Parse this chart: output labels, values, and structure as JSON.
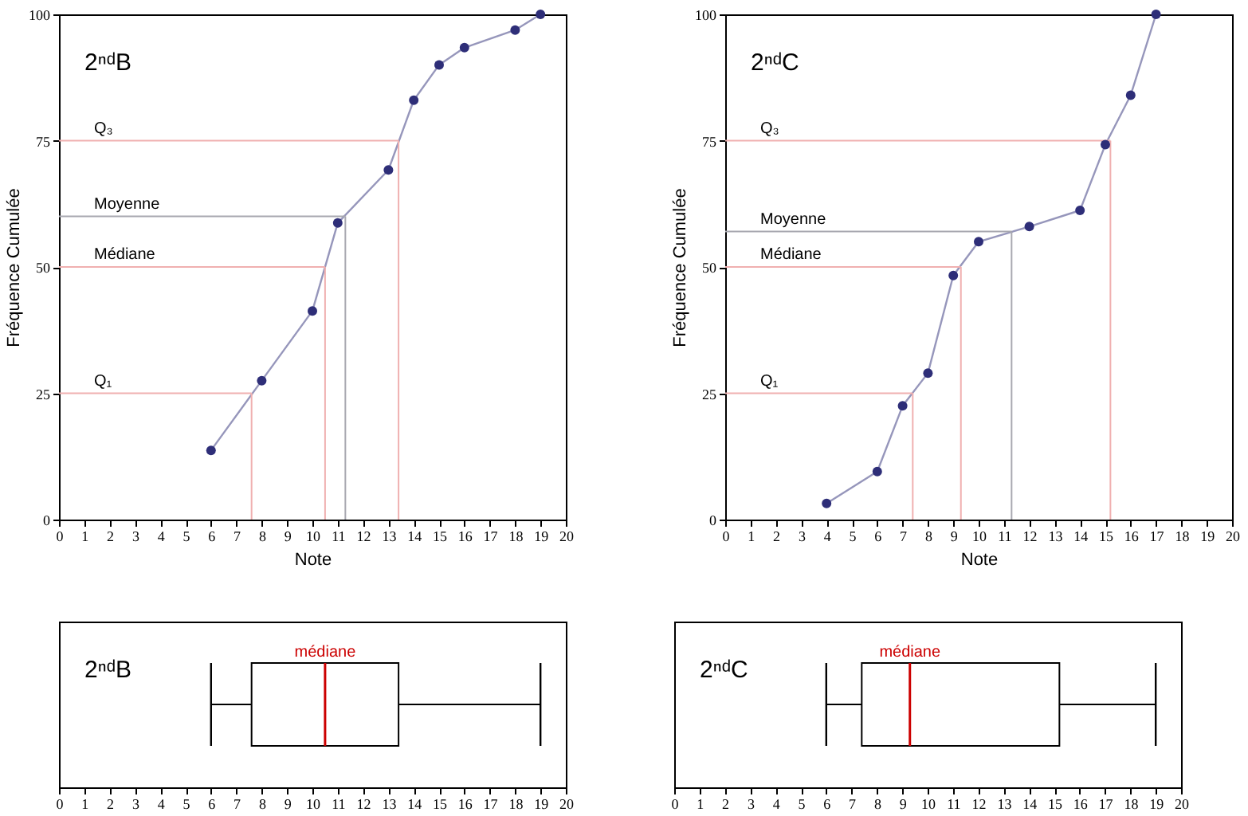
{
  "chart_data": [
    {
      "type": "line",
      "title": "2ⁿᵈB",
      "xlabel": "Note",
      "ylabel": "Fréquence Cumulée",
      "xlim": [
        0,
        20
      ],
      "ylim": [
        0,
        100
      ],
      "xticks": [
        0,
        1,
        2,
        3,
        4,
        5,
        6,
        7,
        8,
        9,
        10,
        11,
        12,
        13,
        14,
        15,
        16,
        17,
        18,
        19,
        20
      ],
      "yticks": [
        0,
        25,
        50,
        75,
        100
      ],
      "marker": "circle",
      "x": [
        6,
        8,
        10,
        11,
        13,
        14,
        15,
        16,
        18,
        19
      ],
      "series": [
        {
          "color": "#2e2e78",
          "values": [
            13.7,
            27.5,
            41.3,
            58.7,
            69.2,
            83,
            90,
            93.4,
            96.9,
            100
          ]
        }
      ],
      "ref_lines": [
        {
          "axis": "y",
          "value": 25,
          "label": "Q₁",
          "color": "#f0b0b0"
        },
        {
          "axis": "x",
          "value": 7.6,
          "color": "#f0b0b0"
        },
        {
          "axis": "y",
          "value": 50,
          "label": "Médiane",
          "color": "#f0b0b0"
        },
        {
          "axis": "x",
          "value": 10.5,
          "color": "#f0b0b0"
        },
        {
          "axis": "y",
          "value": 60,
          "label": "Moyenne",
          "color": "#a8a8b0"
        },
        {
          "axis": "x",
          "value": 11.3,
          "color": "#a8a8b0"
        },
        {
          "axis": "y",
          "value": 75,
          "label": "Q₃",
          "color": "#f0b0b0"
        },
        {
          "axis": "x",
          "value": 13.4,
          "color": "#f0b0b0"
        }
      ]
    },
    {
      "type": "line",
      "title": "2ⁿᵈC",
      "xlabel": "Note",
      "ylabel": "Fréquence Cumulée",
      "xlim": [
        0,
        20
      ],
      "ylim": [
        0,
        100
      ],
      "xticks": [
        0,
        1,
        2,
        3,
        4,
        5,
        6,
        7,
        8,
        9,
        10,
        11,
        12,
        13,
        14,
        15,
        16,
        17,
        18,
        19,
        20
      ],
      "yticks": [
        0,
        25,
        50,
        75,
        100
      ],
      "marker": "circle",
      "x": [
        4,
        6,
        7,
        8,
        9,
        10,
        12,
        14,
        15,
        16,
        17
      ],
      "series": [
        {
          "color": "#2e2e78",
          "values": [
            3.2,
            9.5,
            22.5,
            29,
            48.3,
            55,
            58,
            61.2,
            74.2,
            84,
            100
          ]
        }
      ],
      "ref_lines": [
        {
          "axis": "y",
          "value": 25,
          "label": "Q₁",
          "color": "#f0b0b0"
        },
        {
          "axis": "x",
          "value": 7.4,
          "color": "#f0b0b0"
        },
        {
          "axis": "y",
          "value": 50,
          "label": "Médiane",
          "color": "#f0b0b0"
        },
        {
          "axis": "x",
          "value": 9.3,
          "color": "#f0b0b0"
        },
        {
          "axis": "y",
          "value": 57,
          "label": "Moyenne",
          "color": "#a8a8b0"
        },
        {
          "axis": "x",
          "value": 11.3,
          "color": "#a8a8b0"
        },
        {
          "axis": "y",
          "value": 75,
          "label": "Q₃",
          "color": "#f0b0b0"
        },
        {
          "axis": "x",
          "value": 15.2,
          "color": "#f0b0b0"
        }
      ]
    },
    {
      "type": "box",
      "orientation": "horizontal",
      "title": "2ⁿᵈB",
      "xlim": [
        0,
        20
      ],
      "xticks": [
        0,
        1,
        2,
        3,
        4,
        5,
        6,
        7,
        8,
        9,
        10,
        11,
        12,
        13,
        14,
        15,
        16,
        17,
        18,
        19,
        20
      ],
      "tick_labels": "x",
      "categories": [
        null
      ],
      "boxes": [
        {
          "low": 6,
          "q1": 7.6,
          "median": 10.5,
          "q3": 13.4,
          "high": 19
        }
      ],
      "annotations": [
        "médiane"
      ]
    },
    {
      "type": "box",
      "orientation": "horizontal",
      "title": "2ⁿᵈC",
      "xlim": [
        0,
        20
      ],
      "xticks": [
        0,
        1,
        2,
        3,
        4,
        5,
        6,
        7,
        8,
        9,
        10,
        11,
        12,
        13,
        14,
        15,
        16,
        17,
        18,
        19,
        20
      ],
      "tick_labels": "x",
      "categories": [
        null
      ],
      "boxes": [
        {
          "low": 6,
          "q1": 7.4,
          "median": 9.3,
          "q3": 15.2,
          "high": 19
        }
      ],
      "annotations": [
        "médiane"
      ]
    }
  ]
}
